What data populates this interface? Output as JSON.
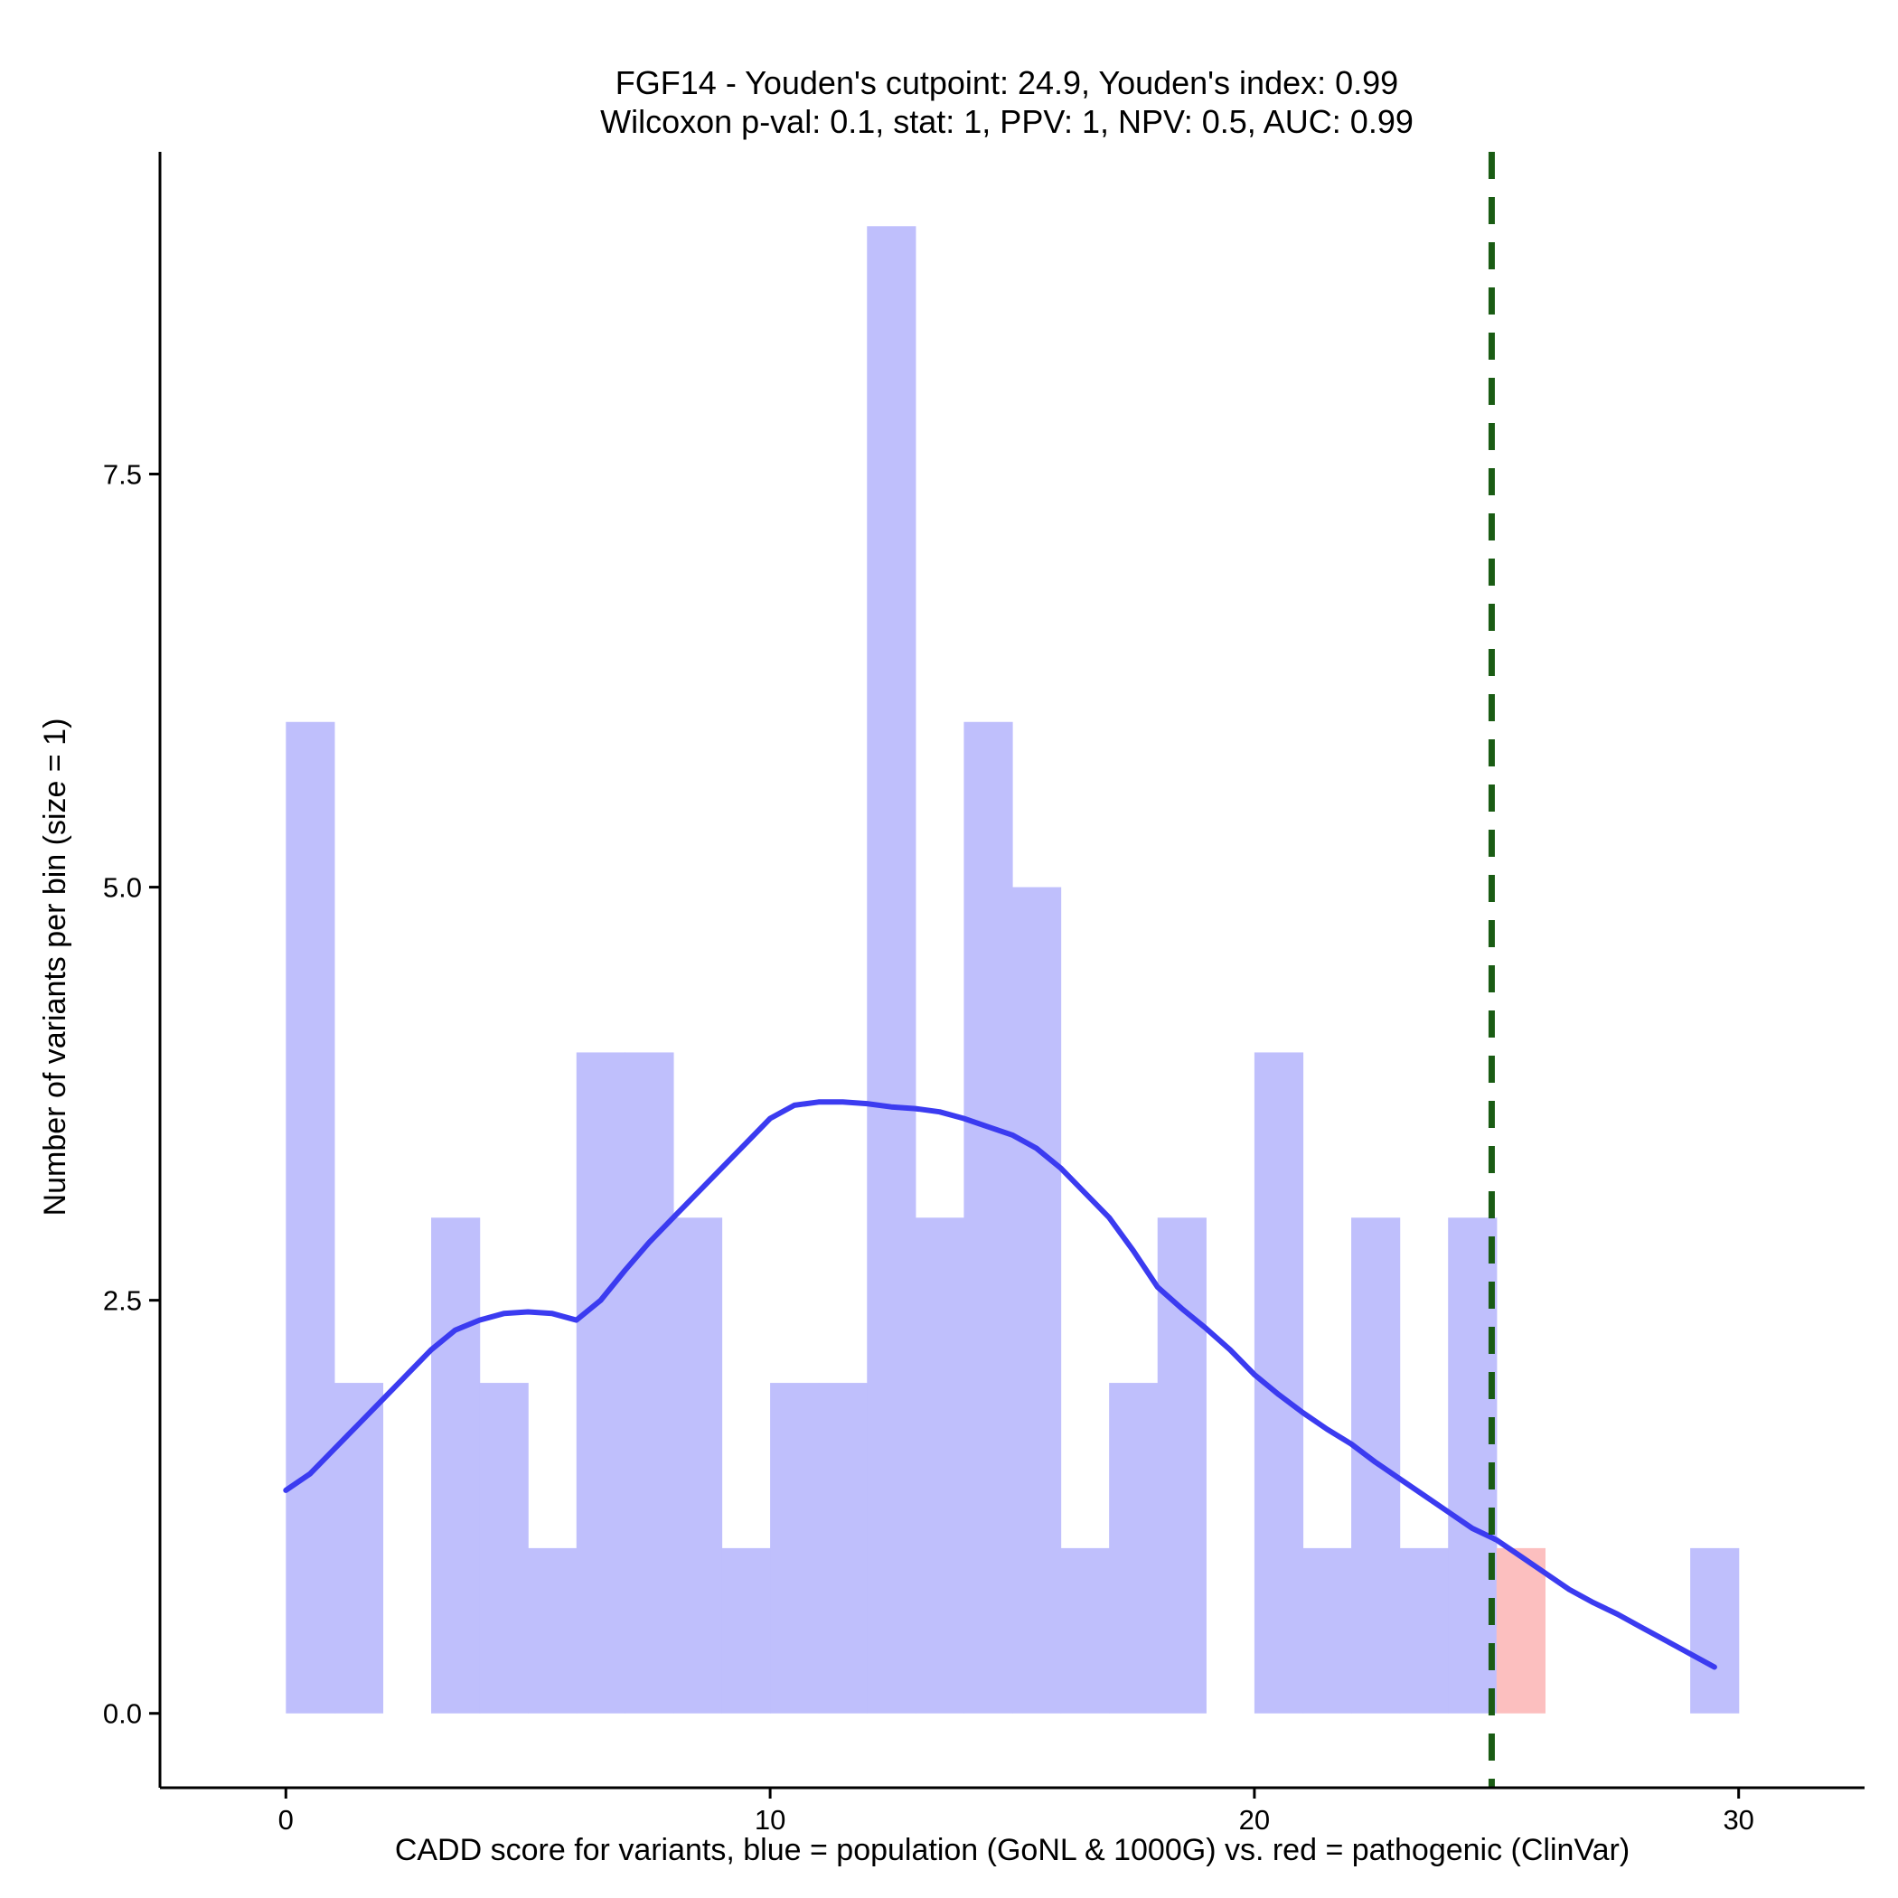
{
  "chart_data": {
    "type": "histogram",
    "title_line1": "FGF14 - Youden's cutpoint: 24.9, Youden's index: 0.99",
    "title_line2": "Wilcoxon p-val: 0.1, stat: 1, PPV: 1, NPV: 0.5, AUC: 0.99",
    "xlabel": "CADD score for variants, blue = population (GoNL & 1000G) vs. red = pathogenic (ClinVar)",
    "ylabel": "Number of variants per bin (size = 1)",
    "xlim": [
      -2.6,
      32.6
    ],
    "ylim": [
      -0.45,
      9.45
    ],
    "x_ticks": [
      0,
      10,
      20,
      30
    ],
    "x_tick_labels": [
      "0",
      "10",
      "20",
      "30"
    ],
    "y_ticks": [
      0,
      2.5,
      5,
      7.5
    ],
    "y_tick_labels": [
      "0.0",
      "2.5",
      "5.0",
      "7.5"
    ],
    "bin_width": 1,
    "series": [
      {
        "name": "population (GoNL & 1000G)",
        "color": "#bfbffc",
        "bins": [
          {
            "x0": 0,
            "count": 6
          },
          {
            "x0": 1,
            "count": 2
          },
          {
            "x0": 2,
            "count": 0
          },
          {
            "x0": 3,
            "count": 3
          },
          {
            "x0": 4,
            "count": 2
          },
          {
            "x0": 5,
            "count": 1
          },
          {
            "x0": 6,
            "count": 4
          },
          {
            "x0": 7,
            "count": 4
          },
          {
            "x0": 8,
            "count": 3
          },
          {
            "x0": 9,
            "count": 1
          },
          {
            "x0": 10,
            "count": 2
          },
          {
            "x0": 11,
            "count": 2
          },
          {
            "x0": 12,
            "count": 9
          },
          {
            "x0": 13,
            "count": 3
          },
          {
            "x0": 14,
            "count": 6
          },
          {
            "x0": 15,
            "count": 5
          },
          {
            "x0": 16,
            "count": 1
          },
          {
            "x0": 17,
            "count": 2
          },
          {
            "x0": 18,
            "count": 3
          },
          {
            "x0": 19,
            "count": 0
          },
          {
            "x0": 20,
            "count": 4
          },
          {
            "x0": 21,
            "count": 1
          },
          {
            "x0": 22,
            "count": 3
          },
          {
            "x0": 23,
            "count": 1
          },
          {
            "x0": 24,
            "count": 3
          },
          {
            "x0": 29,
            "count": 1
          }
        ]
      },
      {
        "name": "pathogenic (ClinVar)",
        "color": "#fcbfbf",
        "bins": [
          {
            "x0": 25,
            "count": 1
          }
        ]
      }
    ],
    "density_curve": {
      "color": "#3b3bf0",
      "x": [
        0,
        0.5,
        1,
        1.5,
        2,
        2.5,
        3,
        3.5,
        4,
        4.5,
        5,
        5.5,
        6,
        6.5,
        7,
        7.5,
        8,
        8.5,
        9,
        9.5,
        10,
        10.5,
        11,
        11.5,
        12,
        12.5,
        13,
        13.5,
        14,
        14.5,
        15,
        15.5,
        16,
        16.5,
        17,
        17.5,
        18,
        18.5,
        19,
        19.5,
        20,
        20.5,
        21,
        21.5,
        22,
        22.5,
        23,
        23.5,
        24,
        24.5,
        25,
        25.5,
        26,
        26.5,
        27,
        27.5,
        28,
        28.5,
        29,
        29.5
      ],
      "y": [
        1.35,
        1.45,
        1.6,
        1.75,
        1.9,
        2.05,
        2.2,
        2.32,
        2.38,
        2.42,
        2.43,
        2.42,
        2.38,
        2.5,
        2.68,
        2.85,
        3.0,
        3.15,
        3.3,
        3.45,
        3.6,
        3.68,
        3.7,
        3.7,
        3.69,
        3.67,
        3.66,
        3.64,
        3.6,
        3.55,
        3.5,
        3.42,
        3.3,
        3.15,
        3.0,
        2.8,
        2.58,
        2.45,
        2.33,
        2.2,
        2.05,
        1.93,
        1.82,
        1.72,
        1.63,
        1.52,
        1.42,
        1.32,
        1.22,
        1.12,
        1.05,
        0.95,
        0.85,
        0.75,
        0.67,
        0.6,
        0.52,
        0.44,
        0.36,
        0.28
      ]
    },
    "cutpoint": {
      "value": 24.9,
      "color": "#1a5c14",
      "style": "dashed"
    }
  }
}
